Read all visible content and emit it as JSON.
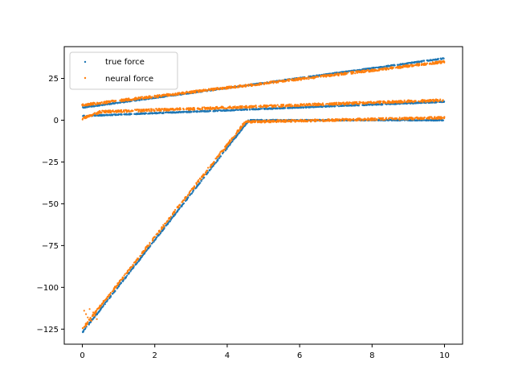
{
  "chart_data": {
    "type": "scatter",
    "title": "",
    "xlabel": "",
    "ylabel": "",
    "xlim": [
      -0.5,
      10.5
    ],
    "ylim": [
      -134,
      44
    ],
    "xticks": [
      0,
      2,
      4,
      6,
      8,
      10
    ],
    "yticks": [
      25,
      0,
      -25,
      -50,
      -75,
      -100,
      -125
    ],
    "xtick_labels": [
      "0",
      "2",
      "4",
      "6",
      "8",
      "10"
    ],
    "ytick_labels": [
      "25",
      "0",
      "−25",
      "−50",
      "−75",
      "−100",
      "−125"
    ],
    "grid": false,
    "legend_position": "top-left",
    "series": [
      {
        "name": "true force",
        "color": "#1f77b4",
        "segments": [
          {
            "x": [
              0,
              10
            ],
            "y": [
              7.5,
              37
            ]
          },
          {
            "x": [
              0,
              10
            ],
            "y": [
              2.5,
              11
            ]
          },
          {
            "x": [
              0,
              4.6,
              10
            ],
            "y": [
              -127,
              0,
              0
            ]
          }
        ]
      },
      {
        "name": "neural force",
        "color": "#ff7f0e",
        "segments": [
          {
            "x": [
              0,
              10
            ],
            "y": [
              9,
              35
            ]
          },
          {
            "x": [
              0,
              0.5,
              10
            ],
            "y": [
              1,
              5,
              12
            ]
          },
          {
            "x": [
              0,
              4.5,
              10
            ],
            "y": [
              -125,
              -1,
              1.5
            ]
          }
        ],
        "outliers": [
          {
            "x": [
              0.05,
              0.1,
              0.15,
              0.2,
              0.25,
              0.3,
              0.35,
              0.4
            ],
            "y": [
              -114,
              -116,
              -118,
              -113,
              -120,
              -115,
              -117,
              -119
            ]
          }
        ]
      }
    ]
  }
}
